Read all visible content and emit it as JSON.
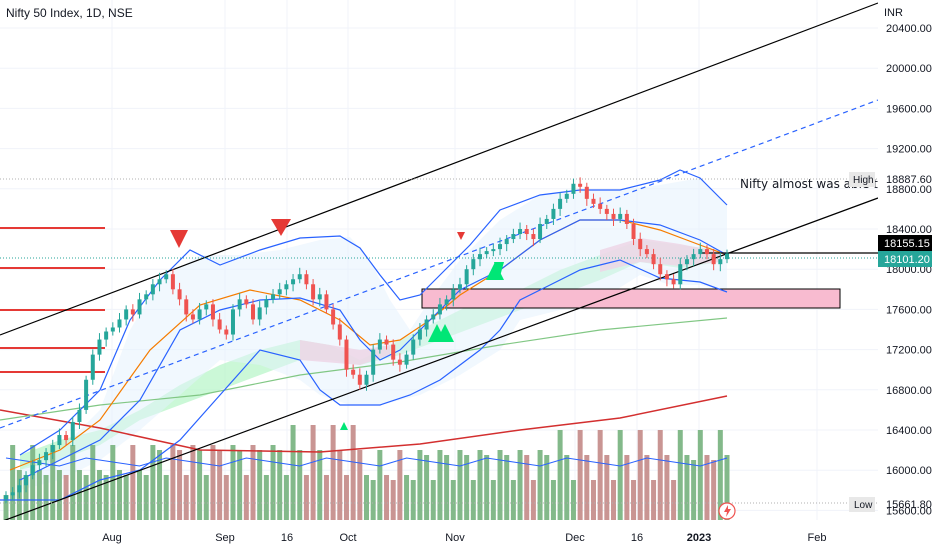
{
  "header": {
    "title": "Nifty 50 Index, 1D, NSE"
  },
  "price_scale": {
    "currency": "INR"
  },
  "annotation": {
    "text": "Nifty almost was able to b"
  },
  "tags": {
    "high_label": "High",
    "high_value": "18887.60",
    "low_label": "Low",
    "low_value": "15661.80",
    "last_value": "18155.15",
    "prev_value": "18101.20"
  },
  "colors": {
    "up": "#26a69a",
    "down": "#ef5350",
    "channel": "#000000",
    "bollinger": "#2962ff",
    "ema": "#f57c00",
    "sma": "#4caf50",
    "volume_up": "#83b98a",
    "volume_down": "#c99593",
    "zone": "#f8bbd0"
  },
  "chart_data": {
    "type": "candlestick",
    "title": "Nifty 50 Index, 1D, NSE",
    "ylabel": "INR",
    "ylim": [
      15450,
      20700
    ],
    "x_ticks": [
      "Aug",
      "Sep",
      "16",
      "Oct",
      "Nov",
      "Dec",
      "16",
      "2023",
      "Feb"
    ],
    "y_ticks": [
      "20400.00",
      "20000.00",
      "19600.00",
      "19200.00",
      "18800.00",
      "18400.00",
      "18000.00",
      "17600.00",
      "17200.00",
      "16800.00",
      "16400.00",
      "16000.00",
      "15600.00"
    ],
    "y_tick_values": [
      20400,
      20000,
      19600,
      19200,
      18800,
      18400,
      18000,
      17600,
      17200,
      16800,
      16400,
      16000,
      15600
    ],
    "close_series": [
      15750,
      15780,
      15850,
      15950,
      16050,
      16100,
      16180,
      16250,
      16350,
      16300,
      16480,
      16600,
      16900,
      17150,
      17300,
      17380,
      17420,
      17500,
      17600,
      17550,
      17700,
      17750,
      17850,
      17900,
      17950,
      17800,
      17700,
      17550,
      17500,
      17600,
      17650,
      17500,
      17400,
      17350,
      17600,
      17700,
      17650,
      17500,
      17620,
      17700,
      17750,
      17800,
      17850,
      17900,
      17950,
      17850,
      17700,
      17750,
      17600,
      17450,
      17300,
      17000,
      16950,
      16850,
      16950,
      17200,
      17300,
      17250,
      17100,
      17050,
      17150,
      17300,
      17400,
      17500,
      17550,
      17650,
      17700,
      17800,
      17850,
      18000,
      18100,
      18150,
      18180,
      18200,
      18250,
      18300,
      18350,
      18400,
      18350,
      18300,
      18450,
      18500,
      18600,
      18700,
      18750,
      18850,
      18820,
      18700,
      18650,
      18600,
      18550,
      18500,
      18550,
      18450,
      18300,
      18200,
      18150,
      18050,
      17950,
      17900,
      17850,
      18050,
      18100,
      18150,
      18200,
      18150,
      18050,
      18100,
      18155
    ],
    "key_levels": [
      18155.15,
      18101.2
    ],
    "high": 18887.6,
    "low": 15661.8
  }
}
